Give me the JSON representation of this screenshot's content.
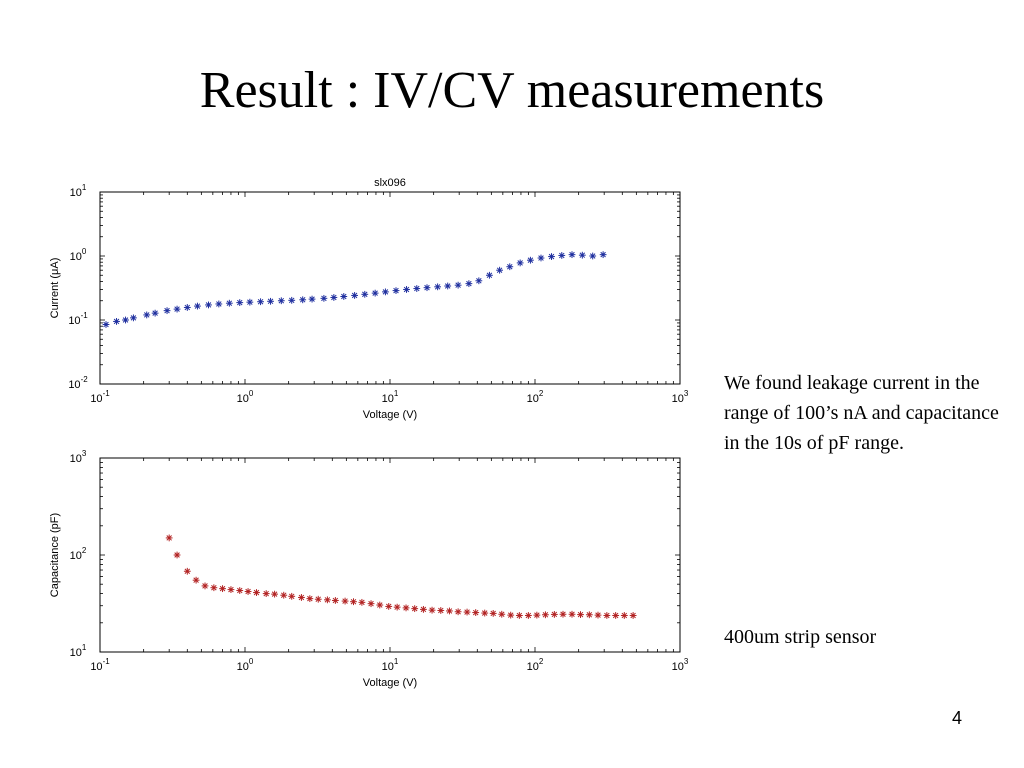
{
  "slide": {
    "title": "Result : IV/CV measurements",
    "note": "We found leakage  current in the range of 100’s nA and capacitance in the 10s of pF range.",
    "sensor_label": "400um strip sensor",
    "page_number": "4"
  },
  "chart_data": [
    {
      "type": "scatter",
      "title": "slx096",
      "xlabel": "Voltage (V)",
      "ylabel": "Current (μA)",
      "xscale": "log",
      "yscale": "log",
      "xlim": [
        0.1,
        1000
      ],
      "ylim": [
        0.01,
        10
      ],
      "x_ticks": [
        {
          "base": "10",
          "exp": "-1",
          "value": 0.1
        },
        {
          "base": "10",
          "exp": "0",
          "value": 1
        },
        {
          "base": "10",
          "exp": "1",
          "value": 10
        },
        {
          "base": "10",
          "exp": "2",
          "value": 100
        },
        {
          "base": "10",
          "exp": "3",
          "value": 1000
        }
      ],
      "y_ticks": [
        {
          "base": "10",
          "exp": "-2",
          "value": 0.01
        },
        {
          "base": "10",
          "exp": "-1",
          "value": 0.1
        },
        {
          "base": "10",
          "exp": "0",
          "value": 1
        },
        {
          "base": "10",
          "exp": "1",
          "value": 10
        }
      ],
      "marker": "*",
      "color": "#1f2f9f",
      "series": [
        {
          "x": [
            0.11,
            0.13,
            0.15,
            0.17,
            0.21,
            0.24,
            0.29,
            0.34,
            0.4,
            0.47,
            0.56,
            0.66,
            0.78,
            0.92,
            1.08,
            1.28,
            1.5,
            1.78,
            2.1,
            2.5,
            2.9,
            3.5,
            4.1,
            4.8,
            5.7,
            6.7,
            7.9,
            9.3,
            11,
            13,
            15.3,
            18,
            21.3,
            25,
            29.5,
            35,
            41,
            48.5,
            57,
            67,
            79,
            93,
            110,
            130,
            153,
            180,
            212,
            250,
            295
          ],
          "y": [
            0.085,
            0.095,
            0.1,
            0.108,
            0.12,
            0.128,
            0.14,
            0.148,
            0.157,
            0.165,
            0.172,
            0.178,
            0.183,
            0.187,
            0.19,
            0.193,
            0.196,
            0.2,
            0.203,
            0.207,
            0.212,
            0.218,
            0.225,
            0.233,
            0.242,
            0.252,
            0.263,
            0.275,
            0.288,
            0.3,
            0.31,
            0.32,
            0.33,
            0.34,
            0.35,
            0.37,
            0.41,
            0.5,
            0.6,
            0.68,
            0.78,
            0.86,
            0.93,
            0.98,
            1.02,
            1.05,
            1.03,
            1.0,
            1.05
          ]
        }
      ]
    },
    {
      "type": "scatter",
      "title": "",
      "xlabel": "Voltage (V)",
      "ylabel": "Capacitance (pF)",
      "xscale": "log",
      "yscale": "log",
      "xlim": [
        0.1,
        1000
      ],
      "ylim": [
        10,
        1000
      ],
      "x_ticks": [
        {
          "base": "10",
          "exp": "-1",
          "value": 0.1
        },
        {
          "base": "10",
          "exp": "0",
          "value": 1
        },
        {
          "base": "10",
          "exp": "1",
          "value": 10
        },
        {
          "base": "10",
          "exp": "2",
          "value": 100
        },
        {
          "base": "10",
          "exp": "3",
          "value": 1000
        }
      ],
      "y_ticks": [
        {
          "base": "10",
          "exp": "1",
          "value": 10
        },
        {
          "base": "10",
          "exp": "2",
          "value": 100
        },
        {
          "base": "10",
          "exp": "3",
          "value": 1000
        }
      ],
      "marker": "*",
      "color": "#b22222",
      "series": [
        {
          "x": [
            0.3,
            0.34,
            0.4,
            0.46,
            0.53,
            0.61,
            0.7,
            0.8,
            0.92,
            1.05,
            1.2,
            1.4,
            1.6,
            1.85,
            2.1,
            2.45,
            2.8,
            3.2,
            3.7,
            4.2,
            4.9,
            5.6,
            6.4,
            7.4,
            8.5,
            9.8,
            11.2,
            12.9,
            14.8,
            17,
            19.5,
            22.4,
            25.7,
            29.5,
            34,
            39,
            45,
            51.5,
            59,
            68,
            78,
            90,
            103,
            118,
            136,
            156,
            180,
            206,
            237,
            272,
            313,
            360,
            413,
            475
          ],
          "y": [
            150,
            100,
            68,
            55,
            48,
            46,
            45,
            44,
            43,
            42,
            41,
            40,
            39.5,
            38.5,
            37.5,
            36.5,
            35.5,
            35,
            34.5,
            34,
            33.5,
            33,
            32.5,
            31.5,
            30.5,
            29.5,
            29,
            28.5,
            28,
            27.5,
            27,
            26.8,
            26.5,
            26,
            25.8,
            25.5,
            25.2,
            25,
            24.5,
            24,
            23.8,
            23.8,
            24,
            24.2,
            24.4,
            24.5,
            24.5,
            24.3,
            24.2,
            24,
            23.8,
            23.8,
            23.8,
            23.8
          ]
        }
      ]
    }
  ]
}
